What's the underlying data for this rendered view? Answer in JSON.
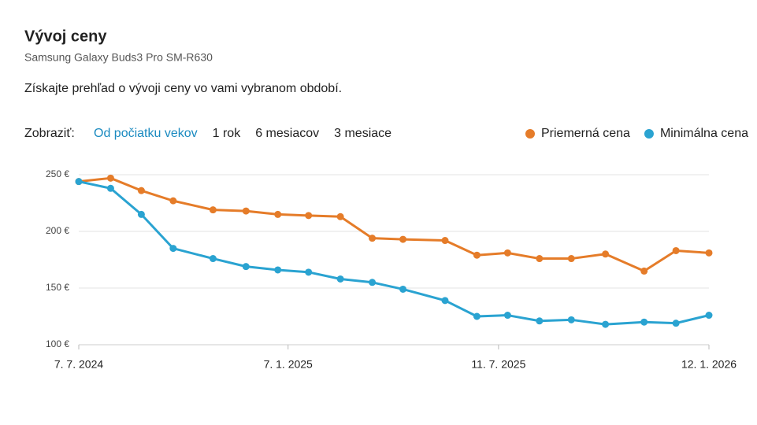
{
  "header": {
    "title": "Vývoj ceny",
    "subtitle": "Samsung Galaxy Buds3 Pro SM-R630",
    "description": "Získajte prehľad o vývoji ceny vo vami vybranom období."
  },
  "filter": {
    "label": "Zobraziť:",
    "options": [
      "Od počiatku vekov",
      "1 rok",
      "6 mesiacov",
      "3 mesiace"
    ],
    "selected": 0
  },
  "chart_data": {
    "type": "line",
    "x": [
      "2024-07-07",
      "2024-08-04",
      "2024-08-31",
      "2024-09-28",
      "2024-11-02",
      "2024-12-01",
      "2024-12-29",
      "2025-01-25",
      "2025-02-22",
      "2025-03-22",
      "2025-04-18",
      "2025-05-25",
      "2025-06-22",
      "2025-07-19",
      "2025-08-16",
      "2025-09-13",
      "2025-10-13",
      "2025-11-16",
      "2025-12-14",
      "2026-01-12"
    ],
    "series": [
      {
        "name": "Priemerná cena",
        "color": "#e57c29",
        "values": [
          244,
          247,
          236,
          227,
          219,
          218,
          215,
          214,
          213,
          194,
          193,
          192,
          179,
          181,
          176,
          176,
          180,
          165,
          183,
          181
        ]
      },
      {
        "name": "Minimálna cena",
        "color": "#2aa3d1",
        "values": [
          244,
          238,
          215,
          185,
          176,
          169,
          166,
          164,
          158,
          155,
          149,
          139,
          125,
          126,
          121,
          122,
          118,
          120,
          119,
          126
        ]
      }
    ],
    "xlim": [
      "2024-07-07",
      "2026-01-12"
    ],
    "xticks": [
      {
        "value": "2024-07-07",
        "label": "7. 7. 2024"
      },
      {
        "value": "2025-01-07",
        "label": "7. 1. 2025"
      },
      {
        "value": "2025-07-11",
        "label": "11. 7. 2025"
      },
      {
        "value": "2026-01-12",
        "label": "12. 1. 2026"
      }
    ],
    "ylim": [
      100,
      250
    ],
    "yticks": [
      {
        "value": 100,
        "label": "100 €"
      },
      {
        "value": 150,
        "label": "150 €"
      },
      {
        "value": 200,
        "label": "200 €"
      },
      {
        "value": 250,
        "label": "250 €"
      }
    ],
    "grid": true,
    "legend": "top-right"
  }
}
